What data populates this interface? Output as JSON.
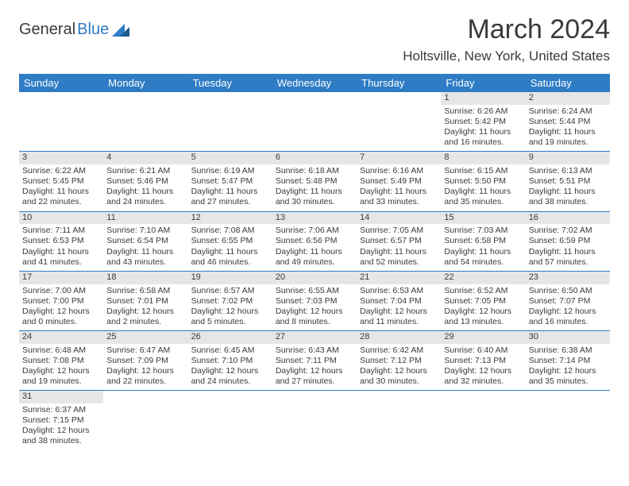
{
  "logo": {
    "dark": "General",
    "blue": "Blue"
  },
  "title": "March 2024",
  "location": "Holtsville, New York, United States",
  "colors": {
    "header_bg": "#2f7cc4",
    "header_fg": "#ffffff",
    "daynum_bg": "#e6e6e6",
    "text": "#3a3a3a",
    "rule": "#2f7cc4"
  },
  "day_headers": [
    "Sunday",
    "Monday",
    "Tuesday",
    "Wednesday",
    "Thursday",
    "Friday",
    "Saturday"
  ],
  "weeks": [
    [
      null,
      null,
      null,
      null,
      null,
      {
        "n": "1",
        "sr": "Sunrise: 6:26 AM",
        "ss": "Sunset: 5:42 PM",
        "dl": "Daylight: 11 hours and 16 minutes."
      },
      {
        "n": "2",
        "sr": "Sunrise: 6:24 AM",
        "ss": "Sunset: 5:44 PM",
        "dl": "Daylight: 11 hours and 19 minutes."
      }
    ],
    [
      {
        "n": "3",
        "sr": "Sunrise: 6:22 AM",
        "ss": "Sunset: 5:45 PM",
        "dl": "Daylight: 11 hours and 22 minutes."
      },
      {
        "n": "4",
        "sr": "Sunrise: 6:21 AM",
        "ss": "Sunset: 5:46 PM",
        "dl": "Daylight: 11 hours and 24 minutes."
      },
      {
        "n": "5",
        "sr": "Sunrise: 6:19 AM",
        "ss": "Sunset: 5:47 PM",
        "dl": "Daylight: 11 hours and 27 minutes."
      },
      {
        "n": "6",
        "sr": "Sunrise: 6:18 AM",
        "ss": "Sunset: 5:48 PM",
        "dl": "Daylight: 11 hours and 30 minutes."
      },
      {
        "n": "7",
        "sr": "Sunrise: 6:16 AM",
        "ss": "Sunset: 5:49 PM",
        "dl": "Daylight: 11 hours and 33 minutes."
      },
      {
        "n": "8",
        "sr": "Sunrise: 6:15 AM",
        "ss": "Sunset: 5:50 PM",
        "dl": "Daylight: 11 hours and 35 minutes."
      },
      {
        "n": "9",
        "sr": "Sunrise: 6:13 AM",
        "ss": "Sunset: 5:51 PM",
        "dl": "Daylight: 11 hours and 38 minutes."
      }
    ],
    [
      {
        "n": "10",
        "sr": "Sunrise: 7:11 AM",
        "ss": "Sunset: 6:53 PM",
        "dl": "Daylight: 11 hours and 41 minutes."
      },
      {
        "n": "11",
        "sr": "Sunrise: 7:10 AM",
        "ss": "Sunset: 6:54 PM",
        "dl": "Daylight: 11 hours and 43 minutes."
      },
      {
        "n": "12",
        "sr": "Sunrise: 7:08 AM",
        "ss": "Sunset: 6:55 PM",
        "dl": "Daylight: 11 hours and 46 minutes."
      },
      {
        "n": "13",
        "sr": "Sunrise: 7:06 AM",
        "ss": "Sunset: 6:56 PM",
        "dl": "Daylight: 11 hours and 49 minutes."
      },
      {
        "n": "14",
        "sr": "Sunrise: 7:05 AM",
        "ss": "Sunset: 6:57 PM",
        "dl": "Daylight: 11 hours and 52 minutes."
      },
      {
        "n": "15",
        "sr": "Sunrise: 7:03 AM",
        "ss": "Sunset: 6:58 PM",
        "dl": "Daylight: 11 hours and 54 minutes."
      },
      {
        "n": "16",
        "sr": "Sunrise: 7:02 AM",
        "ss": "Sunset: 6:59 PM",
        "dl": "Daylight: 11 hours and 57 minutes."
      }
    ],
    [
      {
        "n": "17",
        "sr": "Sunrise: 7:00 AM",
        "ss": "Sunset: 7:00 PM",
        "dl": "Daylight: 12 hours and 0 minutes."
      },
      {
        "n": "18",
        "sr": "Sunrise: 6:58 AM",
        "ss": "Sunset: 7:01 PM",
        "dl": "Daylight: 12 hours and 2 minutes."
      },
      {
        "n": "19",
        "sr": "Sunrise: 6:57 AM",
        "ss": "Sunset: 7:02 PM",
        "dl": "Daylight: 12 hours and 5 minutes."
      },
      {
        "n": "20",
        "sr": "Sunrise: 6:55 AM",
        "ss": "Sunset: 7:03 PM",
        "dl": "Daylight: 12 hours and 8 minutes."
      },
      {
        "n": "21",
        "sr": "Sunrise: 6:53 AM",
        "ss": "Sunset: 7:04 PM",
        "dl": "Daylight: 12 hours and 11 minutes."
      },
      {
        "n": "22",
        "sr": "Sunrise: 6:52 AM",
        "ss": "Sunset: 7:05 PM",
        "dl": "Daylight: 12 hours and 13 minutes."
      },
      {
        "n": "23",
        "sr": "Sunrise: 6:50 AM",
        "ss": "Sunset: 7:07 PM",
        "dl": "Daylight: 12 hours and 16 minutes."
      }
    ],
    [
      {
        "n": "24",
        "sr": "Sunrise: 6:48 AM",
        "ss": "Sunset: 7:08 PM",
        "dl": "Daylight: 12 hours and 19 minutes."
      },
      {
        "n": "25",
        "sr": "Sunrise: 6:47 AM",
        "ss": "Sunset: 7:09 PM",
        "dl": "Daylight: 12 hours and 22 minutes."
      },
      {
        "n": "26",
        "sr": "Sunrise: 6:45 AM",
        "ss": "Sunset: 7:10 PM",
        "dl": "Daylight: 12 hours and 24 minutes."
      },
      {
        "n": "27",
        "sr": "Sunrise: 6:43 AM",
        "ss": "Sunset: 7:11 PM",
        "dl": "Daylight: 12 hours and 27 minutes."
      },
      {
        "n": "28",
        "sr": "Sunrise: 6:42 AM",
        "ss": "Sunset: 7:12 PM",
        "dl": "Daylight: 12 hours and 30 minutes."
      },
      {
        "n": "29",
        "sr": "Sunrise: 6:40 AM",
        "ss": "Sunset: 7:13 PM",
        "dl": "Daylight: 12 hours and 32 minutes."
      },
      {
        "n": "30",
        "sr": "Sunrise: 6:38 AM",
        "ss": "Sunset: 7:14 PM",
        "dl": "Daylight: 12 hours and 35 minutes."
      }
    ],
    [
      {
        "n": "31",
        "sr": "Sunrise: 6:37 AM",
        "ss": "Sunset: 7:15 PM",
        "dl": "Daylight: 12 hours and 38 minutes."
      },
      null,
      null,
      null,
      null,
      null,
      null
    ]
  ]
}
